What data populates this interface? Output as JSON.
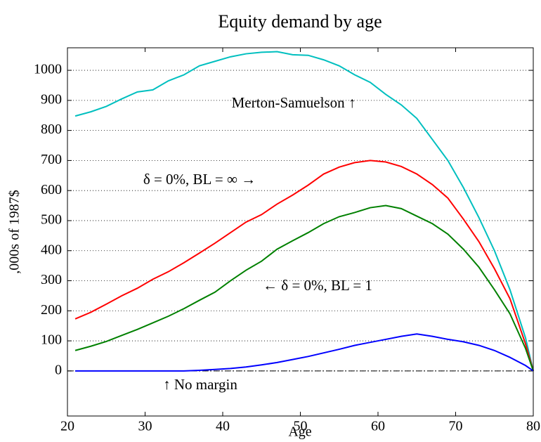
{
  "chart_data": {
    "type": "line",
    "title": "Equity demand by age",
    "x_label": "Age",
    "y_label": ",000s of 1987$",
    "xlim": [
      20,
      80
    ],
    "xticks": [
      20,
      30,
      40,
      50,
      60,
      70,
      80
    ],
    "ylim": [
      -150,
      1075
    ],
    "yticks": [
      0,
      100,
      200,
      300,
      400,
      500,
      600,
      700,
      800,
      900,
      1000
    ],
    "grid": true,
    "reference_line": 0,
    "x": [
      21,
      23,
      25,
      27,
      29,
      31,
      33,
      35,
      37,
      39,
      41,
      43,
      45,
      47,
      49,
      51,
      53,
      55,
      57,
      59,
      61,
      63,
      65,
      67,
      69,
      71,
      73,
      75,
      77,
      79,
      80
    ],
    "series": [
      {
        "color": "#00bfbf",
        "values": [
          848,
          862,
          880,
          905,
          928,
          935,
          965,
          985,
          1015,
          1030,
          1045,
          1055,
          1060,
          1062,
          1052,
          1050,
          1035,
          1015,
          985,
          960,
          920,
          885,
          840,
          770,
          700,
          610,
          510,
          400,
          270,
          110,
          0
        ]
      },
      {
        "color": "#ff0000",
        "values": [
          173,
          195,
          222,
          250,
          275,
          305,
          330,
          360,
          392,
          425,
          460,
          495,
          520,
          555,
          585,
          618,
          655,
          678,
          693,
          700,
          695,
          680,
          655,
          620,
          575,
          505,
          430,
          340,
          240,
          90,
          0
        ]
      },
      {
        "color": "#008000",
        "values": [
          68,
          82,
          98,
          118,
          138,
          160,
          182,
          207,
          235,
          262,
          300,
          335,
          365,
          405,
          433,
          460,
          490,
          513,
          527,
          543,
          550,
          540,
          515,
          490,
          455,
          405,
          345,
          270,
          190,
          75,
          0
        ]
      },
      {
        "color": "#0000ff",
        "values": [
          0,
          0,
          0,
          0,
          0,
          0,
          0,
          0,
          2,
          5,
          8,
          13,
          20,
          28,
          38,
          48,
          60,
          72,
          85,
          95,
          105,
          115,
          123,
          115,
          105,
          97,
          85,
          68,
          45,
          18,
          0
        ]
      }
    ],
    "annotations": [
      "Merton-Samuelson ↑",
      "δ = 0%, BL = ∞ →",
      "← δ = 0%, BL = 1",
      "↑ No margin"
    ]
  }
}
